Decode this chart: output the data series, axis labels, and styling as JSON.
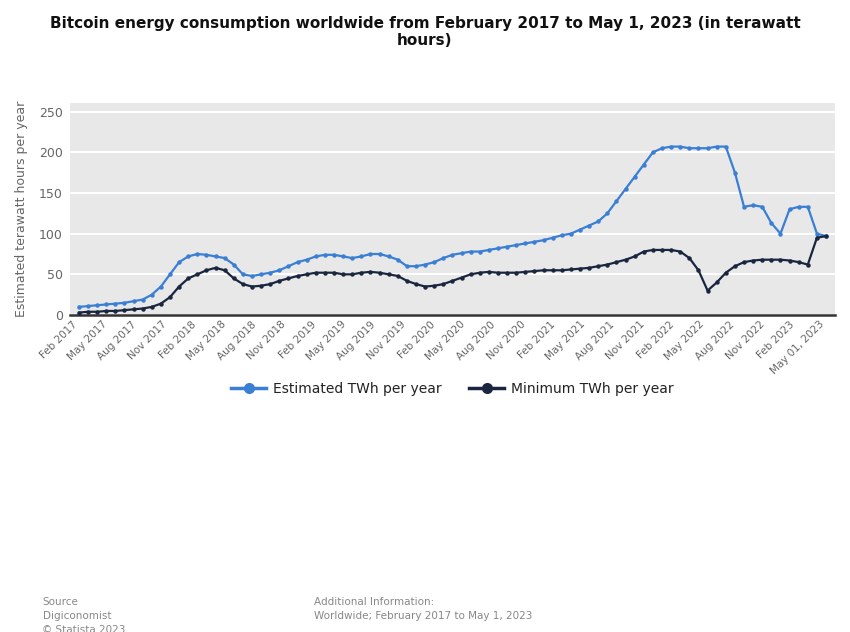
{
  "title": "Bitcoin energy consumption worldwide from February 2017 to May 1, 2023 (in terawatt\nhours)",
  "ylabel": "Estimated terawatt hours per year",
  "source_text": "Source\nDigiconomist\n© Statista 2023",
  "additional_info": "Additional Information:\nWorldwide; February 2017 to May 1, 2023",
  "legend_estimated": "Estimated TWh per year",
  "legend_minimum": "Minimum TWh per year",
  "color_estimated": "#3a7fd4",
  "color_minimum": "#1a2640",
  "bg_fig": "#ffffff",
  "bg_ax": "#e8e8e8",
  "grid_color": "#ffffff",
  "ylim": [
    0,
    260
  ],
  "yticks": [
    0,
    50,
    100,
    150,
    200,
    250
  ],
  "x_labels": [
    "Feb 2017",
    "May 2017",
    "Aug 2017",
    "Nov 2017",
    "Feb 2018",
    "May 2018",
    "Aug 2018",
    "Nov 2018",
    "Feb 2019",
    "May 2019",
    "Aug 2019",
    "Nov 2019",
    "Feb 2020",
    "May 2020",
    "Aug 2020",
    "Nov 2020",
    "Feb 2021",
    "May 2021",
    "Aug 2021",
    "Nov 2021",
    "Feb 2022",
    "May 2022",
    "Aug 2022",
    "Nov 2022",
    "Feb 2023",
    "May 01, 2023"
  ],
  "estimated": [
    10,
    11,
    12,
    13,
    14,
    15,
    17,
    19,
    25,
    35,
    50,
    65,
    72,
    75,
    74,
    72,
    70,
    62,
    50,
    48,
    50,
    52,
    55,
    60,
    65,
    68,
    72,
    74,
    74,
    72,
    70,
    72,
    75,
    75,
    72,
    68,
    60,
    60,
    62,
    65,
    70,
    74,
    76,
    78,
    78,
    80,
    82,
    84,
    86,
    88,
    90,
    92,
    95,
    98,
    100,
    105,
    110,
    115,
    125,
    140,
    155,
    170,
    185,
    200,
    205,
    207,
    207,
    205,
    205,
    205,
    207,
    207,
    175,
    133,
    135,
    133,
    113,
    100,
    130,
    133,
    133,
    100,
    97
  ],
  "minimum": [
    3,
    4,
    4,
    5,
    5,
    6,
    7,
    8,
    10,
    14,
    22,
    35,
    45,
    50,
    55,
    58,
    55,
    45,
    38,
    35,
    36,
    38,
    42,
    45,
    48,
    50,
    52,
    52,
    52,
    50,
    50,
    52,
    53,
    52,
    50,
    48,
    42,
    38,
    35,
    36,
    38,
    42,
    46,
    50,
    52,
    53,
    52,
    52,
    52,
    53,
    54,
    55,
    55,
    55,
    56,
    57,
    58,
    60,
    62,
    65,
    68,
    72,
    78,
    80,
    80,
    80,
    78,
    70,
    55,
    30,
    40,
    52,
    60,
    65,
    67,
    68,
    68,
    68,
    67,
    65,
    62,
    95,
    97
  ]
}
